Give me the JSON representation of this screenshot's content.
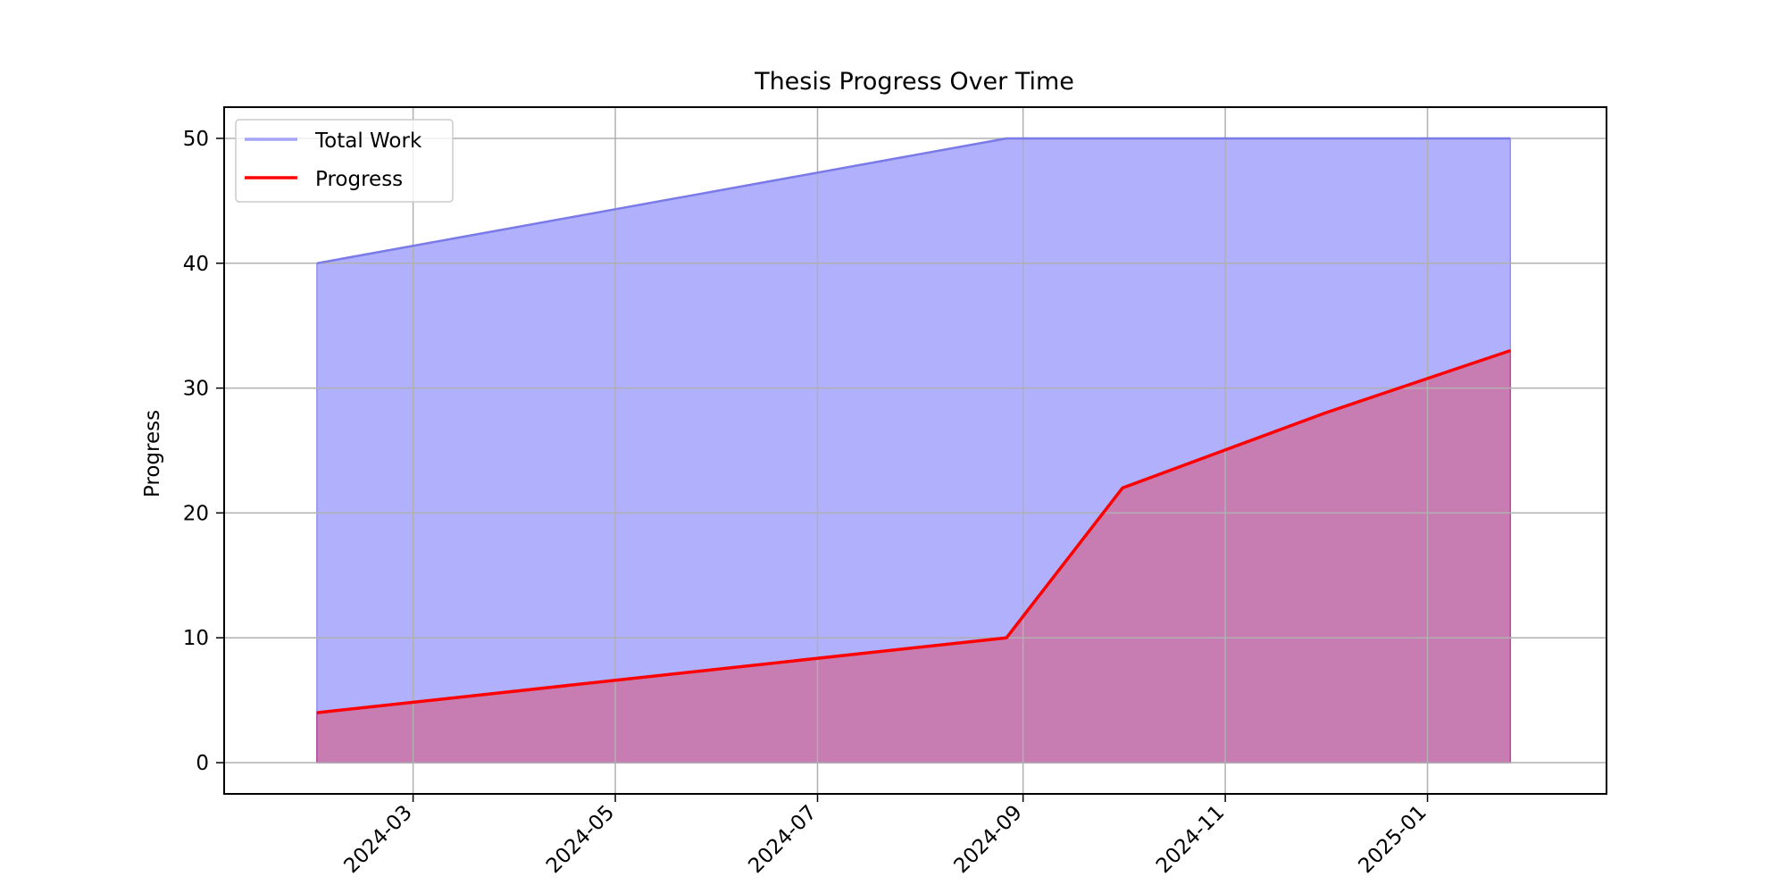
{
  "chart_data": {
    "type": "area",
    "title": "Thesis Progress Over Time",
    "xlabel": "",
    "ylabel": "Progress",
    "x": [
      "2024-02-01",
      "2024-08-27",
      "2024-10-01",
      "2024-12-01",
      "2025-01-26"
    ],
    "x_ticks": [
      "2024-03",
      "2024-05",
      "2024-07",
      "2024-09",
      "2024-11",
      "2025-01"
    ],
    "xlim": [
      "2024-01-04",
      "2025-02-24"
    ],
    "ylim": [
      -2.5,
      52.5
    ],
    "y_ticks": [
      "0",
      "10",
      "20",
      "30",
      "40",
      "50"
    ],
    "grid": true,
    "legend_position": "top-left",
    "series": [
      {
        "name": "Total Work",
        "values": [
          40,
          50,
          50,
          50,
          50
        ],
        "color": "#6666ff",
        "fill": "#b0b0fc"
      },
      {
        "name": "Progress",
        "values": [
          4,
          10,
          22,
          28,
          33
        ],
        "color": "#ff0000",
        "fill": "#c87db2"
      }
    ]
  }
}
